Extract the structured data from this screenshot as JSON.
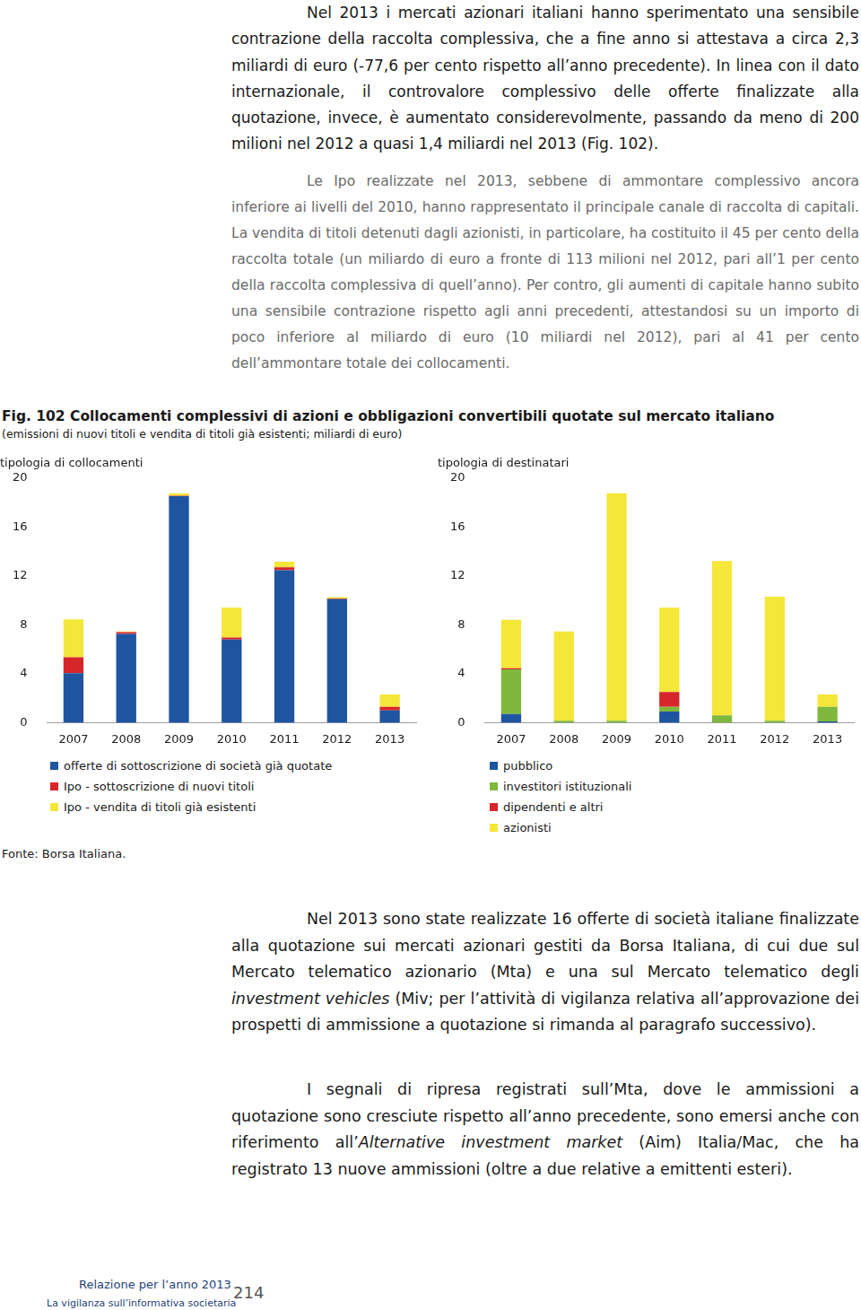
{
  "paragraphs_top": [
    "Nel 2013 i mercati azionari italiani hanno sperimentato una sensibile contrazione della raccolta complessiva, che a fine anno si attestava a circa 2,3 miliardi di euro (-77,6 per cento rispetto all’anno precedente). In linea con il dato internazionale, il controvalore complessivo delle offerte finalizzate alla quotazione, invece, è aumentato considerevolmente, passando da meno di 200 milioni nel 2012 a quasi 1,4 miliardi nel 2013 (Fig. 102).",
    "Le Ipo realizzate nel 2013, sebbene di ammontare complessivo ancora inferiore ai livelli del 2010, hanno rappresentato il principale canale di raccolta di capitali. La vendita di titoli detenuti dagli azionisti, in particolare, ha costituito il 45 per cento della raccolta totale (un miliardo di euro a fronte di 113 milioni nel 2012, pari all’1 per cento della raccolta complessiva di quell’anno). Per contro, gli aumenti di capitale hanno subito una sensibile contrazione rispetto agli anni precedenti, attestandosi su un importo di poco inferiore al miliardo di euro (10 miliardi nel 2012), pari al 41 per cento dell’ammontare totale dei collocamenti."
  ],
  "figure": {
    "title": "Fig. 102 Collocamenti complessivi di azioni e obbligazioni convertibili quotate sul mercato italiano",
    "subtitle": "(emissioni di nuovi titoli e vendita di titoli già esistenti; miliardi di euro)",
    "source": "Fonte: Borsa Italiana."
  },
  "chart_data": [
    {
      "type": "bar",
      "stacked": true,
      "title": "tipologia di collocamenti",
      "categories": [
        "2007",
        "2008",
        "2009",
        "2010",
        "2011",
        "2012",
        "2013"
      ],
      "series": [
        {
          "name": "offerte di sottoscrizione di società già quotate",
          "color": "#1f55a0",
          "values": [
            4.05,
            7.25,
            18.5,
            6.8,
            12.45,
            10.1,
            1.0
          ]
        },
        {
          "name": "Ipo - sottoscrizione di nuovi titoli",
          "color": "#d7262b",
          "values": [
            1.3,
            0.15,
            0.05,
            0.15,
            0.25,
            0.05,
            0.3
          ]
        },
        {
          "name": "Ipo - vendita di titoli già esistenti",
          "color": "#f5e63a",
          "values": [
            3.1,
            0.05,
            0.2,
            2.45,
            0.45,
            0.1,
            1.0
          ]
        }
      ],
      "ylim": [
        0,
        20
      ],
      "yticks": [
        0,
        4,
        8,
        12,
        16,
        20
      ],
      "grid": false,
      "legend": "bottom"
    },
    {
      "type": "bar",
      "stacked": true,
      "title": "tipologia di destinatari",
      "categories": [
        "2007",
        "2008",
        "2009",
        "2010",
        "2011",
        "2012",
        "2013"
      ],
      "series": [
        {
          "name": "pubblico",
          "color": "#1f55a0",
          "values": [
            0.7,
            0,
            0,
            0.9,
            0,
            0,
            0.1
          ]
        },
        {
          "name": "investitori istituzionali",
          "color": "#7fb83d",
          "values": [
            3.65,
            0.15,
            0.15,
            0.4,
            0.6,
            0.15,
            1.2
          ]
        },
        {
          "name": "dipendenti e altri",
          "color": "#d7262b",
          "values": [
            0.1,
            0,
            0,
            1.2,
            0,
            0,
            0
          ]
        },
        {
          "name": "azionisti",
          "color": "#f5e63a",
          "values": [
            3.95,
            7.3,
            18.6,
            6.9,
            12.6,
            10.15,
            1.0
          ]
        }
      ],
      "ylim": [
        0,
        20
      ],
      "yticks": [
        0,
        4,
        8,
        12,
        16,
        20
      ],
      "grid": false,
      "legend": "bottom"
    }
  ],
  "paragraphs_bottom": [
    [
      {
        "text": "Nel 2013 sono state realizzate 16 offerte di società italiane finalizzate alla quotazione sui mercati azionari gestiti da Borsa Italiana, di cui due sul Mercato telematico azionario (Mta) e una sul Mercato telematico degli "
      },
      {
        "text": "investment vehicles",
        "italic": true
      },
      {
        "text": " (Miv; per l’attività di vigilanza relativa all’approvazione dei prospetti di ammissione a quotazione si rimanda al paragrafo successivo)."
      }
    ],
    [
      {
        "text": "I segnali di ripresa registrati sull’Mta, dove le ammissioni a quotazione sono cresciute rispetto all’anno precedente, sono emersi anche con riferimento all’"
      },
      {
        "text": "Alternative investment market",
        "italic": true
      },
      {
        "text": " (Aim) Italia/Mac, che ha registrato 13 nuove ammissioni (oltre a due relative a emittenti esteri)."
      }
    ]
  ],
  "footer": {
    "report": "Relazione per l’anno 2013",
    "section": "La vigilanza sull’informativa societaria",
    "page": "214"
  }
}
